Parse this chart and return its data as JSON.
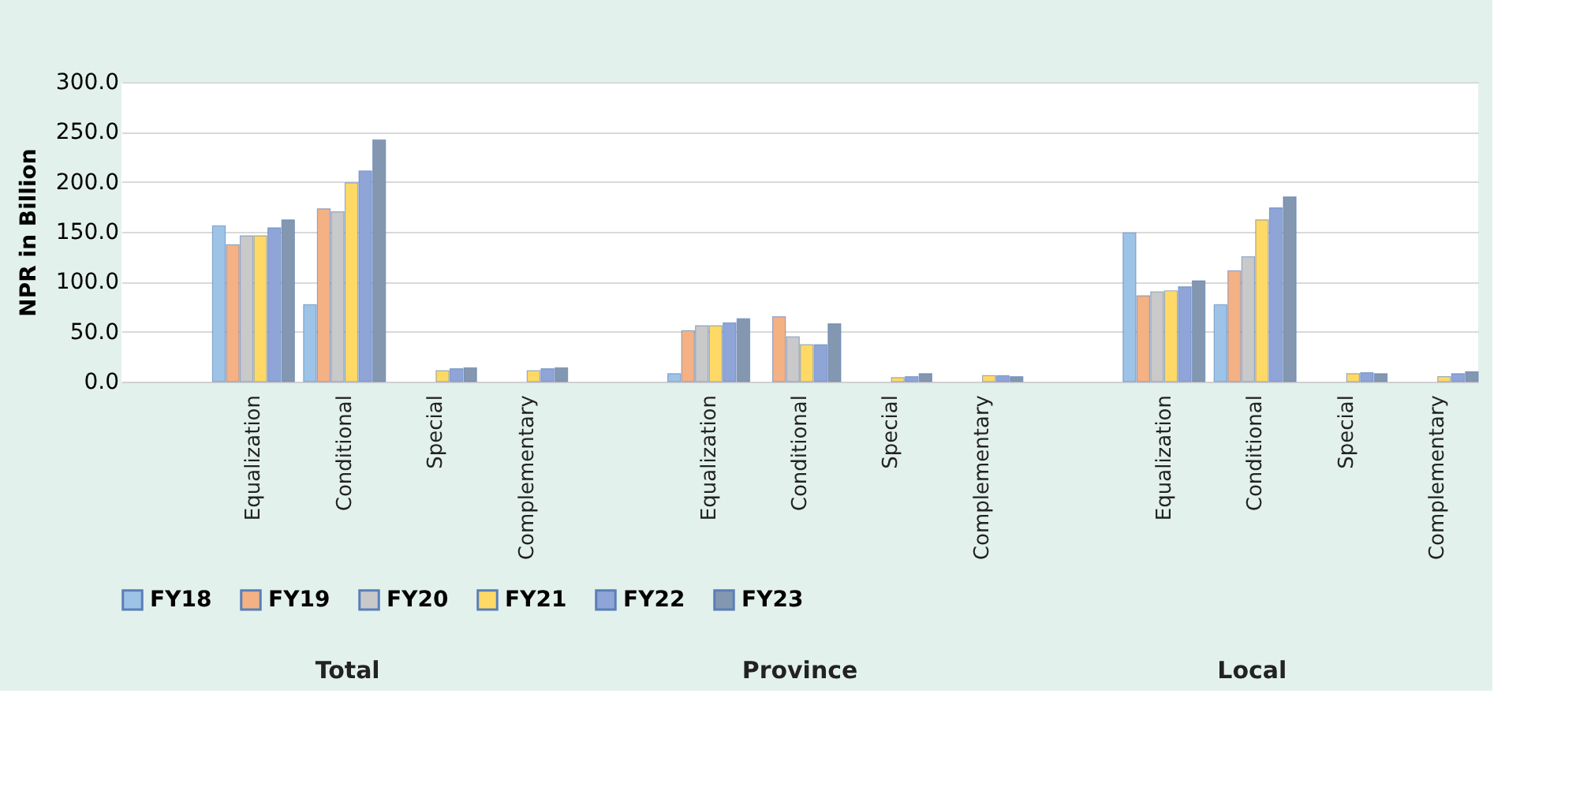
{
  "chart_data": {
    "type": "bar",
    "ylabel": "NPR in Billion",
    "categories": [
      null,
      "Equalization",
      "Conditional",
      "Special",
      "Complementary",
      null,
      "Equalization",
      "Conditional",
      "Special",
      "Complementary",
      null,
      "Equalization",
      "Conditional",
      "Special",
      "Complementary"
    ],
    "series": [
      {
        "name": "FY18",
        "color": "#9dc3e6",
        "values": [
          null,
          156,
          77,
          null,
          null,
          null,
          8,
          null,
          null,
          null,
          null,
          149,
          77,
          null,
          null
        ]
      },
      {
        "name": "FY19",
        "color": "#f4b183",
        "values": [
          null,
          137,
          173,
          null,
          null,
          null,
          51,
          65,
          null,
          null,
          null,
          86,
          111,
          null,
          null
        ]
      },
      {
        "name": "FY20",
        "color": "#c9c9c9",
        "values": [
          null,
          146,
          170,
          null,
          null,
          null,
          56,
          45,
          null,
          null,
          null,
          90,
          125,
          null,
          null
        ]
      },
      {
        "name": "FY21",
        "color": "#ffd966",
        "values": [
          null,
          146,
          199,
          11,
          11,
          null,
          56,
          37,
          4,
          6,
          null,
          91,
          162,
          8,
          5
        ]
      },
      {
        "name": "FY22",
        "color": "#8fa5d8",
        "values": [
          null,
          154,
          211,
          13,
          13,
          null,
          59,
          37,
          5,
          6,
          null,
          95,
          174,
          9,
          8
        ]
      },
      {
        "name": "FY23",
        "color": "#8497b0",
        "values": [
          null,
          162,
          242,
          14,
          14,
          null,
          63,
          58,
          8,
          5,
          null,
          101,
          185,
          8,
          10
        ]
      }
    ],
    "annotations": [
      "Total",
      "Province",
      "Local"
    ],
    "ylim": [
      0,
      300
    ],
    "yticks": [
      {
        "value": 0,
        "label": "0.0"
      },
      {
        "value": 50,
        "label": "50.0"
      },
      {
        "value": 100,
        "label": "100.0"
      },
      {
        "value": 150,
        "label": "150.0"
      },
      {
        "value": 200,
        "label": "200.0"
      },
      {
        "value": 250,
        "label": "250.0"
      },
      {
        "value": 300,
        "label": "300.0"
      }
    ],
    "grid": "y",
    "legend": "bottom"
  }
}
